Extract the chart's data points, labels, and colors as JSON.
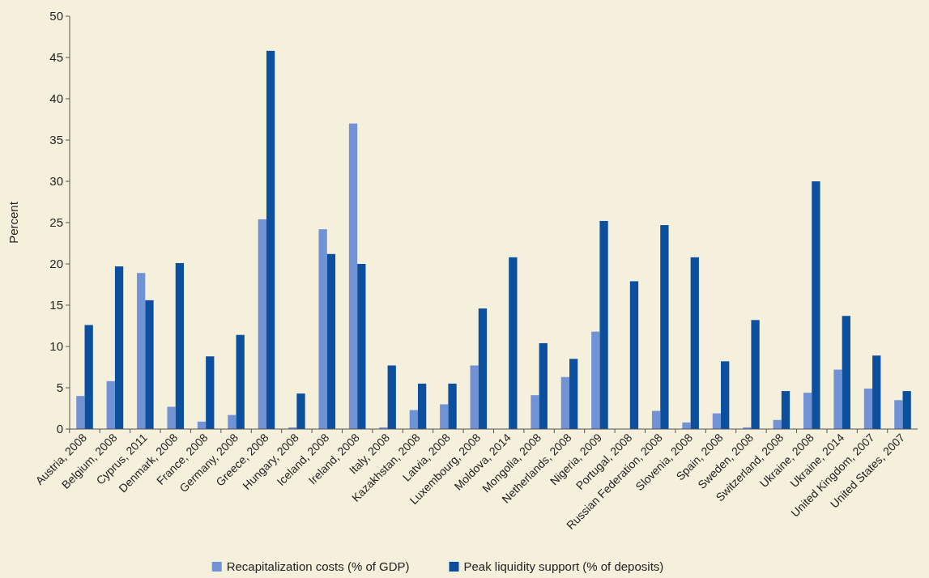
{
  "chart_data": {
    "type": "bar",
    "ylabel": "Percent",
    "categories": [
      "Austria, 2008",
      "Belgium, 2008",
      "Cyprus, 2011",
      "Denmark, 2008",
      "France, 2008",
      "Germany, 2008",
      "Greece, 2008",
      "Hungary, 2008",
      "Iceland, 2008",
      "Ireland, 2008",
      "Italy, 2008",
      "Kazakhstan, 2008",
      "Latvia, 2008",
      "Luxembourg, 2008",
      "Moldova, 2014",
      "Mongolia, 2008",
      "Netherlands, 2008",
      "Nigeria, 2009",
      "Portugal, 2008",
      "Russian Federation, 2008",
      "Slovenia, 2008",
      "Spain, 2008",
      "Sweden, 2008",
      "Switzerland, 2008",
      "Ukraine, 2008",
      "Ukraine, 2014",
      "United Kingdom, 2007",
      "United States, 2007"
    ],
    "series": [
      {
        "name": "Recapitalization costs (% of GDP)",
        "color": "#7193d6",
        "values": [
          4.0,
          5.8,
          18.9,
          2.7,
          0.9,
          1.7,
          25.4,
          0.2,
          24.2,
          37.0,
          0.2,
          2.3,
          3.0,
          7.7,
          null,
          4.1,
          6.3,
          11.8,
          null,
          2.2,
          0.8,
          1.9,
          0.2,
          1.1,
          4.4,
          7.2,
          4.9,
          3.5
        ]
      },
      {
        "name": "Peak liquidity support (% of deposits)",
        "color": "#0b4f9e",
        "values": [
          12.6,
          19.7,
          15.6,
          20.1,
          8.8,
          11.4,
          45.8,
          4.3,
          21.2,
          20.0,
          7.7,
          5.5,
          5.5,
          14.6,
          20.8,
          10.4,
          8.5,
          25.2,
          17.9,
          24.7,
          20.8,
          8.2,
          13.2,
          4.6,
          30.0,
          13.7,
          8.9,
          4.6
        ]
      }
    ],
    "ylim": [
      0,
      50
    ],
    "yticks": [
      0,
      5,
      10,
      15,
      20,
      25,
      30,
      35,
      40,
      45,
      50
    ],
    "grid": false,
    "legend": "bottom"
  }
}
